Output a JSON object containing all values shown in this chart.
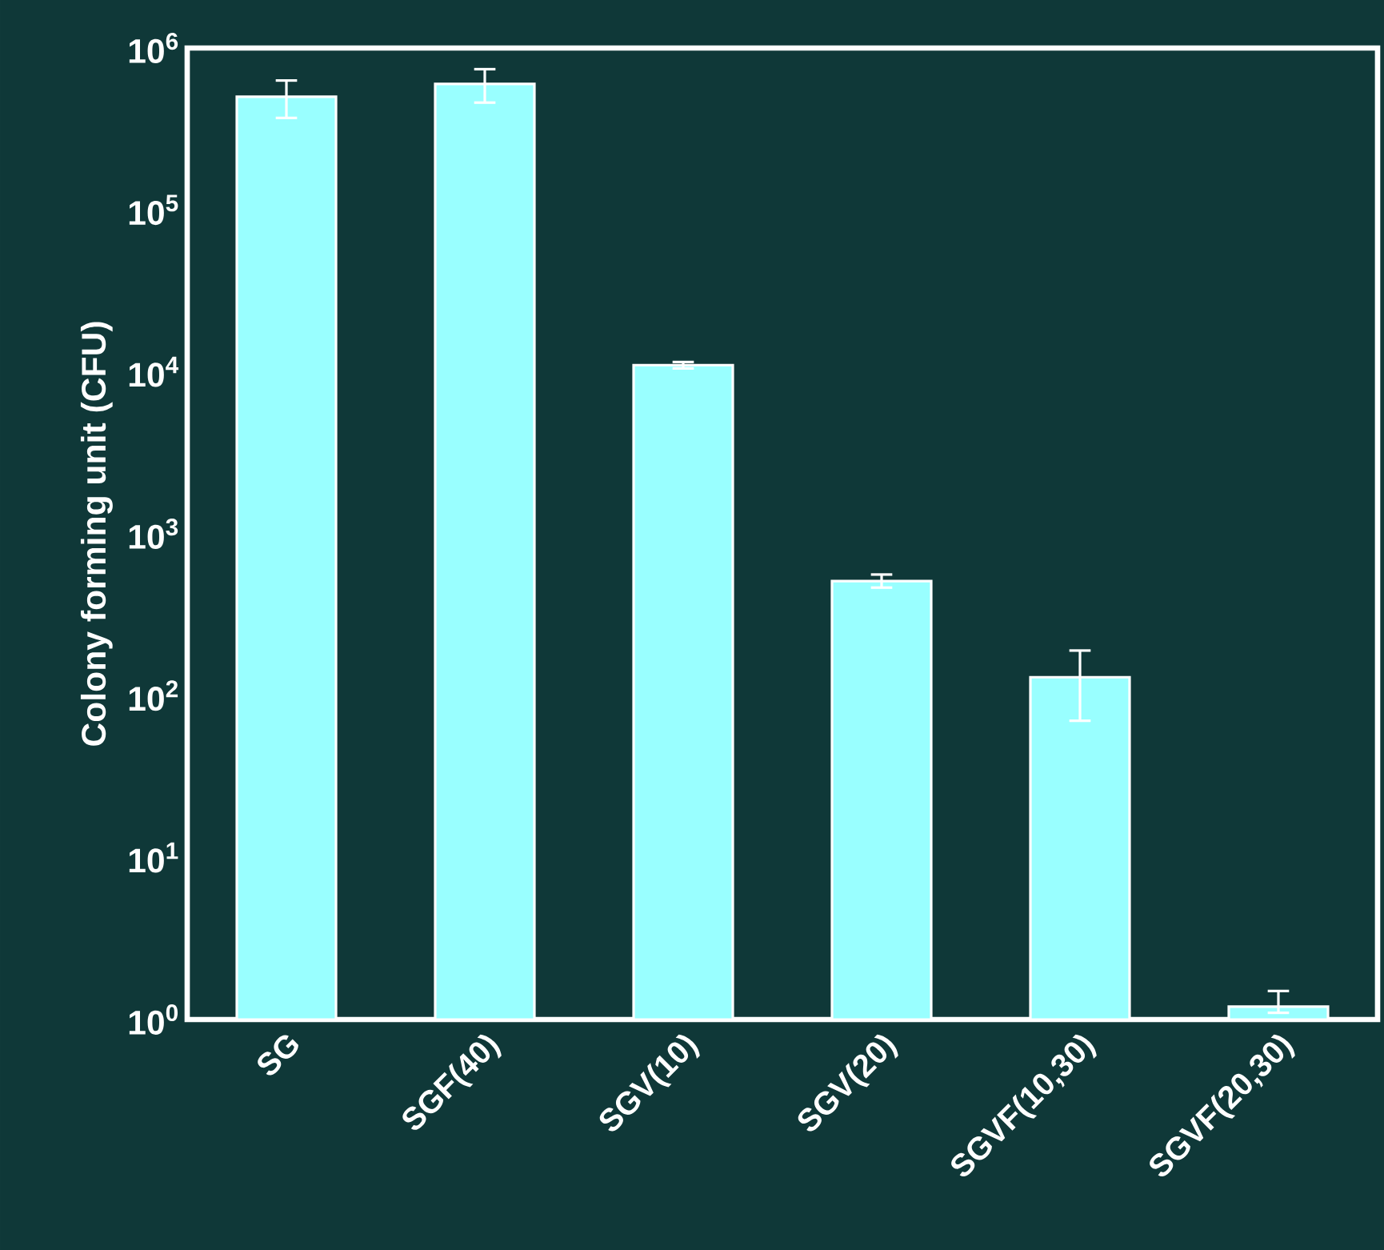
{
  "chart_data": {
    "type": "bar",
    "ylabel": "Colony forming unit (CFU)",
    "categories": [
      "SG",
      "SGF(40)",
      "SGV(10)",
      "SGV(20)",
      "SGVF(10,30)",
      "SGVF(20,30)"
    ],
    "values": [
      500000,
      600000,
      11000,
      510,
      130,
      1.2
    ],
    "errors": [
      [
        370000,
        630000
      ],
      [
        460000,
        740000
      ],
      [
        10500,
        11500
      ],
      [
        465,
        560
      ],
      [
        70,
        190
      ],
      [
        1.1,
        1.5
      ]
    ],
    "color": "#99ffff",
    "log": "y",
    "ylim": [
      1,
      1000000
    ],
    "yticks": [
      {
        "value": 1,
        "label": "10$^{0}$"
      },
      {
        "value": 10,
        "label": "10$^{1}$"
      },
      {
        "value": 100,
        "label": "10$^{2}$"
      },
      {
        "value": 1000,
        "label": "10$^{3}$"
      },
      {
        "value": 10000,
        "label": "10$^{4}$"
      },
      {
        "value": 100000,
        "label": "10$^{5}$"
      },
      {
        "value": 1000000,
        "label": "10$^{6}$"
      }
    ],
    "grid": false
  }
}
